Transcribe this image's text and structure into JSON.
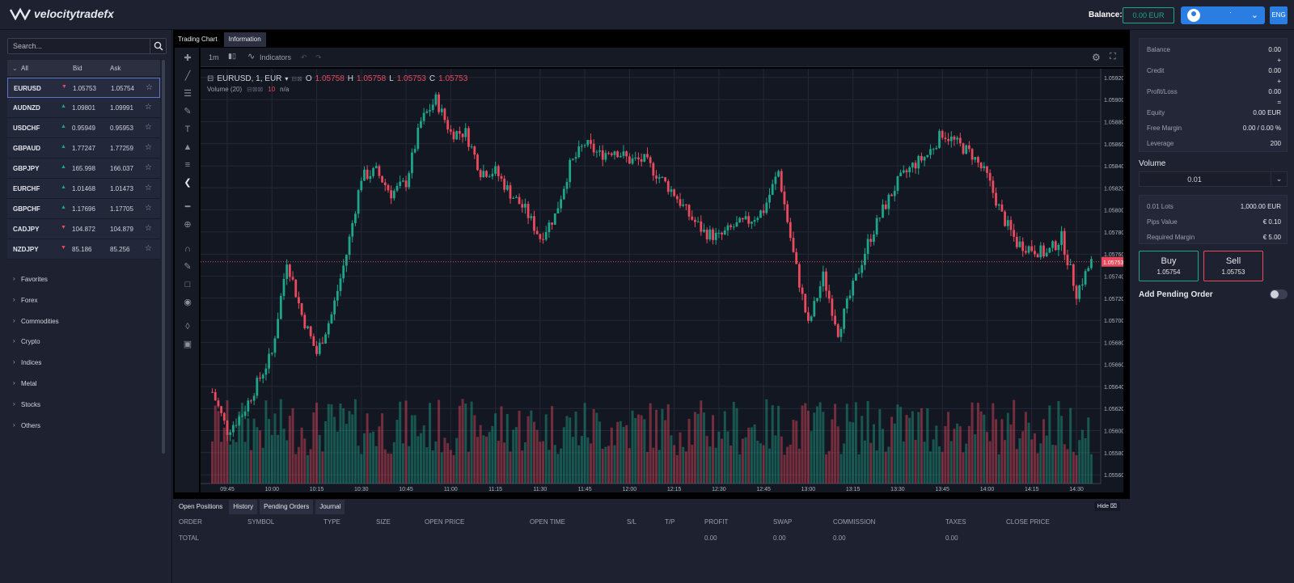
{
  "header": {
    "brand": "velocitytradefx",
    "balance_label": "Balance:",
    "balance_value": "0.00 EUR",
    "account_name": "·",
    "language": "ENG"
  },
  "sidebar": {
    "search_placeholder": "Search...",
    "columns": {
      "all": "All",
      "bid": "Bid",
      "ask": "Ask"
    },
    "symbols": [
      {
        "symbol": "EURUSD",
        "dir": "down",
        "bid": "1.05753",
        "ask": "1.05754"
      },
      {
        "symbol": "AUDNZD",
        "dir": "up",
        "bid": "1.09801",
        "ask": "1.09991"
      },
      {
        "symbol": "USDCHF",
        "dir": "up",
        "bid": "0.95949",
        "ask": "0.95953"
      },
      {
        "symbol": "GBPAUD",
        "dir": "up",
        "bid": "1.77247",
        "ask": "1.77259"
      },
      {
        "symbol": "GBPJPY",
        "dir": "up",
        "bid": "165.998",
        "ask": "166.037"
      },
      {
        "symbol": "EURCHF",
        "dir": "up",
        "bid": "1.01468",
        "ask": "1.01473"
      },
      {
        "symbol": "GBPCHF",
        "dir": "up",
        "bid": "1.17696",
        "ask": "1.17705"
      },
      {
        "symbol": "CADJPY",
        "dir": "down",
        "bid": "104.872",
        "ask": "104.879"
      },
      {
        "symbol": "NZDJPY",
        "dir": "down",
        "bid": "85.186",
        "ask": "85.256"
      }
    ],
    "categories": [
      "Favorites",
      "Forex",
      "Commodities",
      "Crypto",
      "Indices",
      "Metal",
      "Stocks",
      "Others"
    ]
  },
  "tabs": {
    "trading_chart": "Trading Chart",
    "information": "Information"
  },
  "chart_toolbar": {
    "interval": "1m",
    "indicators": "Indicators"
  },
  "legend": {
    "symbol": "EURUSD, 1, EUR",
    "o_label": "O",
    "o": "1.05758",
    "h_label": "H",
    "h": "1.05758",
    "l_label": "L",
    "l": "1.05753",
    "c_label": "C",
    "c": "1.05753",
    "volume": "Volume (20)",
    "volume_value": "10",
    "volume_na": "n/a"
  },
  "chart_data": {
    "type": "candlestick",
    "symbol": "EURUSD",
    "interval": "1m",
    "y_ticks": [
      "1.05920",
      "1.05900",
      "1.05880",
      "1.05860",
      "1.05840",
      "1.05820",
      "1.05800",
      "1.05780",
      "1.05760",
      "1.05740",
      "1.05720",
      "1.05700",
      "1.05680",
      "1.05660",
      "1.05640",
      "1.05620",
      "1.05600",
      "1.05580",
      "1.05560"
    ],
    "x_ticks": [
      "09:45",
      "10:00",
      "10:15",
      "10:30",
      "10:45",
      "11:00",
      "11:15",
      "11:30",
      "11:45",
      "12:00",
      "12:15",
      "12:30",
      "12:45",
      "13:00",
      "13:15",
      "13:30",
      "13:45",
      "14:00",
      "14:15",
      "14:30"
    ],
    "ylim": [
      1.05552,
      1.05928
    ],
    "last_price": "1.05753",
    "last_price_value": 1.05753,
    "close_path": [
      {
        "t": "09:40",
        "close": 1.05635
      },
      {
        "t": "09:45",
        "close": 1.056
      },
      {
        "t": "09:50",
        "close": 1.05615
      },
      {
        "t": "10:00",
        "close": 1.0567
      },
      {
        "t": "10:05",
        "close": 1.05755
      },
      {
        "t": "10:10",
        "close": 1.05705
      },
      {
        "t": "10:15",
        "close": 1.0567
      },
      {
        "t": "10:20",
        "close": 1.05705
      },
      {
        "t": "10:25",
        "close": 1.0576
      },
      {
        "t": "10:30",
        "close": 1.0583
      },
      {
        "t": "10:35",
        "close": 1.05835
      },
      {
        "t": "10:40",
        "close": 1.05815
      },
      {
        "t": "10:45",
        "close": 1.05825
      },
      {
        "t": "10:50",
        "close": 1.0588
      },
      {
        "t": "10:55",
        "close": 1.059
      },
      {
        "t": "11:00",
        "close": 1.0587
      },
      {
        "t": "11:05",
        "close": 1.0587
      },
      {
        "t": "11:10",
        "close": 1.05835
      },
      {
        "t": "11:15",
        "close": 1.05835
      },
      {
        "t": "11:20",
        "close": 1.05815
      },
      {
        "t": "11:25",
        "close": 1.058
      },
      {
        "t": "11:30",
        "close": 1.05775
      },
      {
        "t": "11:35",
        "close": 1.05795
      },
      {
        "t": "11:40",
        "close": 1.0584
      },
      {
        "t": "11:45",
        "close": 1.0586
      },
      {
        "t": "11:50",
        "close": 1.0585
      },
      {
        "t": "11:55",
        "close": 1.05855
      },
      {
        "t": "12:00",
        "close": 1.05845
      },
      {
        "t": "12:05",
        "close": 1.05845
      },
      {
        "t": "12:10",
        "close": 1.0583
      },
      {
        "t": "12:15",
        "close": 1.05815
      },
      {
        "t": "12:20",
        "close": 1.05795
      },
      {
        "t": "12:25",
        "close": 1.0578
      },
      {
        "t": "12:30",
        "close": 1.05775
      },
      {
        "t": "12:35",
        "close": 1.05785
      },
      {
        "t": "12:40",
        "close": 1.0579
      },
      {
        "t": "12:45",
        "close": 1.058
      },
      {
        "t": "12:50",
        "close": 1.05835
      },
      {
        "t": "12:55",
        "close": 1.0576
      },
      {
        "t": "13:00",
        "close": 1.05695
      },
      {
        "t": "13:05",
        "close": 1.0574
      },
      {
        "t": "13:10",
        "close": 1.0569
      },
      {
        "t": "13:15",
        "close": 1.0573
      },
      {
        "t": "13:20",
        "close": 1.0577
      },
      {
        "t": "13:25",
        "close": 1.058
      },
      {
        "t": "13:30",
        "close": 1.05825
      },
      {
        "t": "13:35",
        "close": 1.0584
      },
      {
        "t": "13:40",
        "close": 1.0585
      },
      {
        "t": "13:45",
        "close": 1.0587
      },
      {
        "t": "13:50",
        "close": 1.0586
      },
      {
        "t": "13:55",
        "close": 1.0585
      },
      {
        "t": "14:00",
        "close": 1.0583
      },
      {
        "t": "14:05",
        "close": 1.05795
      },
      {
        "t": "14:10",
        "close": 1.0577
      },
      {
        "t": "14:15",
        "close": 1.05765
      },
      {
        "t": "14:20",
        "close": 1.0576
      },
      {
        "t": "14:25",
        "close": 1.05775
      },
      {
        "t": "14:30",
        "close": 1.05725
      },
      {
        "t": "14:35",
        "close": 1.05753
      }
    ]
  },
  "bottom": {
    "tabs": [
      "Open Positions",
      "History",
      "Pending Orders",
      "Journal"
    ],
    "hide": "Hide",
    "columns": [
      "ORDER",
      "SYMBOL",
      "TYPE",
      "SIZE",
      "OPEN PRICE",
      "OPEN TIME",
      "S/L",
      "T/P",
      "PROFIT",
      "SWAP",
      "COMMISSION",
      "TAXES",
      "CLOSE PRICE"
    ],
    "total_label": "TOTAL",
    "total_profit": "0.00",
    "total_swap": "0.00",
    "total_commission": "0.00",
    "total_taxes": "0.00"
  },
  "account": {
    "balance_label": "Balance",
    "balance": "0.00",
    "balance_plus": "+",
    "credit_label": "Credit",
    "credit": "0.00",
    "credit_plus": "+",
    "pl_label": "Profit/Loss",
    "pl": "0.00",
    "pl_eq": "=",
    "equity_label": "Equity",
    "equity": "0.00 EUR",
    "free_margin_label": "Free Margin",
    "free_margin": "0.00 / 0.00 %",
    "leverage_label": "Leverage",
    "leverage": "200"
  },
  "order": {
    "volume_label": "Volume",
    "volume": "0.01",
    "lots_label": "0.01 Lots",
    "lots_value": "1,000.00 EUR",
    "pips_label": "Pips Value",
    "pips_value": "€ 0.10",
    "margin_label": "Required Margin",
    "margin_value": "€ 5.00",
    "buy_label": "Buy",
    "buy_price": "1.05754",
    "sell_label": "Sell",
    "sell_price": "1.05753",
    "pending_label": "Add Pending Order"
  },
  "colors": {
    "up": "#1ea58a",
    "down": "#e94a5e",
    "accent": "#2a7de1",
    "chart_bg": "#131722"
  }
}
